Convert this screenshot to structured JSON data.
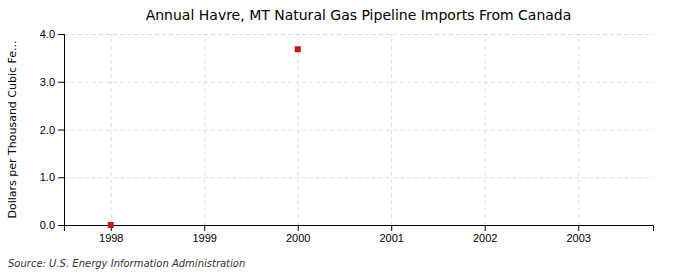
{
  "chart_data": {
    "type": "scatter",
    "title": "Annual Havre, MT Natural Gas Pipeline Imports From Canada",
    "ylabel": "Dollars per Thousand Cubic Fe...",
    "source": "Source: U.S. Energy Information Administration",
    "x": [
      1998,
      2000
    ],
    "values": [
      0.0,
      3.68
    ],
    "color": "#cc1111",
    "marker": "square",
    "xlim": [
      1997.5,
      2003.8
    ],
    "xticks": [
      1998,
      1999,
      2000,
      2001,
      2002,
      2003
    ],
    "ylim": [
      0.0,
      4.0
    ],
    "yticks": [
      {
        "value": 0.0,
        "label": "0.0"
      },
      {
        "value": 1.0,
        "label": "1.0"
      },
      {
        "value": 2.0,
        "label": "2.0"
      },
      {
        "value": 3.0,
        "label": "3.0"
      },
      {
        "value": 4.0,
        "label": "4.0"
      }
    ],
    "grid": true
  }
}
